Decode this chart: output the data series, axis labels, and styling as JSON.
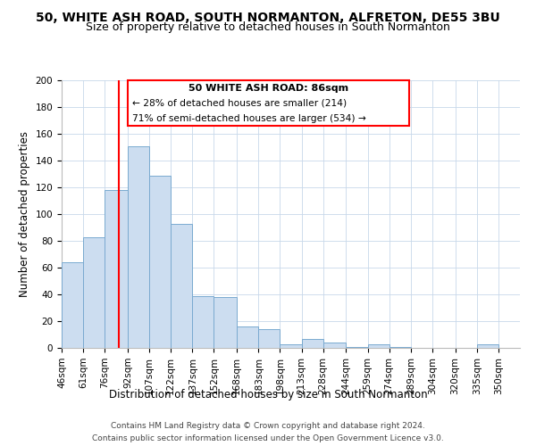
{
  "title": "50, WHITE ASH ROAD, SOUTH NORMANTON, ALFRETON, DE55 3BU",
  "subtitle": "Size of property relative to detached houses in South Normanton",
  "xlabel": "Distribution of detached houses by size in South Normanton",
  "ylabel": "Number of detached properties",
  "footer1": "Contains HM Land Registry data © Crown copyright and database right 2024.",
  "footer2": "Contains public sector information licensed under the Open Government Licence v3.0.",
  "annotation_title": "50 WHITE ASH ROAD: 86sqm",
  "annotation_line2": "← 28% of detached houses are smaller (214)",
  "annotation_line3": "71% of semi-detached houses are larger (534) →",
  "bar_labels": [
    "46sqm",
    "61sqm",
    "76sqm",
    "92sqm",
    "107sqm",
    "122sqm",
    "137sqm",
    "152sqm",
    "168sqm",
    "183sqm",
    "198sqm",
    "213sqm",
    "228sqm",
    "244sqm",
    "259sqm",
    "274sqm",
    "289sqm",
    "304sqm",
    "320sqm",
    "335sqm",
    "350sqm"
  ],
  "bar_values": [
    64,
    83,
    118,
    151,
    129,
    93,
    39,
    38,
    16,
    14,
    3,
    7,
    4,
    1,
    3,
    1,
    0,
    0,
    0,
    3,
    0
  ],
  "bar_color": "#ccddf0",
  "bar_edge_color": "#7aaad0",
  "property_line_x": 86,
  "ylim": [
    0,
    200
  ],
  "yticks": [
    0,
    20,
    40,
    60,
    80,
    100,
    120,
    140,
    160,
    180,
    200
  ],
  "title_fontsize": 10,
  "subtitle_fontsize": 9,
  "axis_label_fontsize": 8.5,
  "tick_fontsize": 7.5,
  "annotation_fontsize": 8,
  "footer_fontsize": 6.5
}
